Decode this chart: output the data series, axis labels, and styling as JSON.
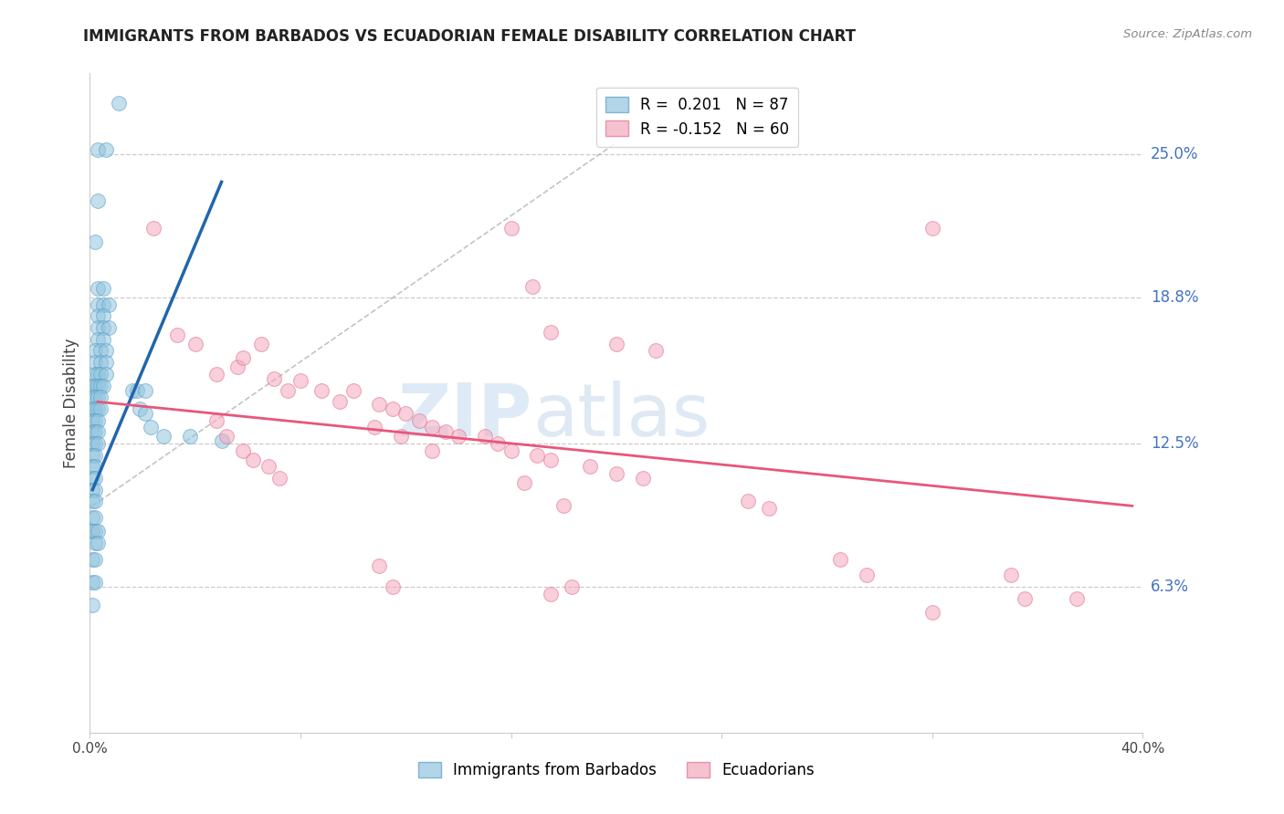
{
  "title": "IMMIGRANTS FROM BARBADOS VS ECUADORIAN FEMALE DISABILITY CORRELATION CHART",
  "source": "Source: ZipAtlas.com",
  "ylabel": "Female Disability",
  "ytick_labels": [
    "25.0%",
    "18.8%",
    "12.5%",
    "6.3%"
  ],
  "ytick_values": [
    0.25,
    0.188,
    0.125,
    0.063
  ],
  "xmin": 0.0,
  "xmax": 0.4,
  "ymin": 0.0,
  "ymax": 0.285,
  "legend_labels_bottom": [
    "Immigrants from Barbados",
    "Ecuadorians"
  ],
  "blue_color": "#92c5de",
  "pink_color": "#f4a8bc",
  "blue_edge_color": "#5a9ec9",
  "pink_edge_color": "#e07090",
  "blue_line_color": "#2166ac",
  "pink_line_color": "#e8567a",
  "dot_size": 130,
  "blue_scatter": [
    [
      0.003,
      0.252
    ],
    [
      0.006,
      0.252
    ],
    [
      0.003,
      0.23
    ],
    [
      0.002,
      0.212
    ],
    [
      0.003,
      0.192
    ],
    [
      0.005,
      0.192
    ],
    [
      0.003,
      0.185
    ],
    [
      0.005,
      0.185
    ],
    [
      0.007,
      0.185
    ],
    [
      0.003,
      0.18
    ],
    [
      0.005,
      0.18
    ],
    [
      0.003,
      0.175
    ],
    [
      0.005,
      0.175
    ],
    [
      0.007,
      0.175
    ],
    [
      0.003,
      0.17
    ],
    [
      0.005,
      0.17
    ],
    [
      0.002,
      0.165
    ],
    [
      0.004,
      0.165
    ],
    [
      0.006,
      0.165
    ],
    [
      0.002,
      0.16
    ],
    [
      0.004,
      0.16
    ],
    [
      0.006,
      0.16
    ],
    [
      0.002,
      0.155
    ],
    [
      0.003,
      0.155
    ],
    [
      0.004,
      0.155
    ],
    [
      0.006,
      0.155
    ],
    [
      0.001,
      0.15
    ],
    [
      0.002,
      0.15
    ],
    [
      0.003,
      0.15
    ],
    [
      0.004,
      0.15
    ],
    [
      0.005,
      0.15
    ],
    [
      0.001,
      0.145
    ],
    [
      0.002,
      0.145
    ],
    [
      0.003,
      0.145
    ],
    [
      0.004,
      0.145
    ],
    [
      0.001,
      0.14
    ],
    [
      0.002,
      0.14
    ],
    [
      0.003,
      0.14
    ],
    [
      0.004,
      0.14
    ],
    [
      0.001,
      0.135
    ],
    [
      0.002,
      0.135
    ],
    [
      0.003,
      0.135
    ],
    [
      0.001,
      0.13
    ],
    [
      0.002,
      0.13
    ],
    [
      0.003,
      0.13
    ],
    [
      0.001,
      0.125
    ],
    [
      0.002,
      0.125
    ],
    [
      0.003,
      0.125
    ],
    [
      0.001,
      0.12
    ],
    [
      0.002,
      0.12
    ],
    [
      0.001,
      0.115
    ],
    [
      0.002,
      0.115
    ],
    [
      0.001,
      0.11
    ],
    [
      0.002,
      0.11
    ],
    [
      0.001,
      0.105
    ],
    [
      0.002,
      0.105
    ],
    [
      0.001,
      0.1
    ],
    [
      0.002,
      0.1
    ],
    [
      0.001,
      0.093
    ],
    [
      0.002,
      0.093
    ],
    [
      0.001,
      0.087
    ],
    [
      0.002,
      0.087
    ],
    [
      0.003,
      0.087
    ],
    [
      0.002,
      0.082
    ],
    [
      0.003,
      0.082
    ],
    [
      0.001,
      0.075
    ],
    [
      0.002,
      0.075
    ],
    [
      0.001,
      0.065
    ],
    [
      0.002,
      0.065
    ],
    [
      0.001,
      0.055
    ],
    [
      0.011,
      0.272
    ],
    [
      0.016,
      0.148
    ],
    [
      0.018,
      0.148
    ],
    [
      0.021,
      0.148
    ],
    [
      0.019,
      0.14
    ],
    [
      0.021,
      0.138
    ],
    [
      0.023,
      0.132
    ],
    [
      0.028,
      0.128
    ],
    [
      0.038,
      0.128
    ],
    [
      0.05,
      0.126
    ]
  ],
  "pink_scatter": [
    [
      0.024,
      0.218
    ],
    [
      0.033,
      0.172
    ],
    [
      0.04,
      0.168
    ],
    [
      0.048,
      0.155
    ],
    [
      0.056,
      0.158
    ],
    [
      0.065,
      0.168
    ],
    [
      0.058,
      0.162
    ],
    [
      0.07,
      0.153
    ],
    [
      0.075,
      0.148
    ],
    [
      0.08,
      0.152
    ],
    [
      0.088,
      0.148
    ],
    [
      0.095,
      0.143
    ],
    [
      0.1,
      0.148
    ],
    [
      0.11,
      0.142
    ],
    [
      0.115,
      0.14
    ],
    [
      0.12,
      0.138
    ],
    [
      0.125,
      0.135
    ],
    [
      0.13,
      0.132
    ],
    [
      0.135,
      0.13
    ],
    [
      0.14,
      0.128
    ],
    [
      0.15,
      0.128
    ],
    [
      0.155,
      0.125
    ],
    [
      0.16,
      0.122
    ],
    [
      0.17,
      0.12
    ],
    [
      0.175,
      0.118
    ],
    [
      0.19,
      0.115
    ],
    [
      0.2,
      0.112
    ],
    [
      0.21,
      0.11
    ],
    [
      0.16,
      0.218
    ],
    [
      0.168,
      0.193
    ],
    [
      0.175,
      0.173
    ],
    [
      0.2,
      0.168
    ],
    [
      0.215,
      0.165
    ],
    [
      0.32,
      0.218
    ],
    [
      0.048,
      0.135
    ],
    [
      0.052,
      0.128
    ],
    [
      0.058,
      0.122
    ],
    [
      0.062,
      0.118
    ],
    [
      0.068,
      0.115
    ],
    [
      0.072,
      0.11
    ],
    [
      0.108,
      0.132
    ],
    [
      0.118,
      0.128
    ],
    [
      0.13,
      0.122
    ],
    [
      0.165,
      0.108
    ],
    [
      0.18,
      0.098
    ],
    [
      0.25,
      0.1
    ],
    [
      0.258,
      0.097
    ],
    [
      0.285,
      0.075
    ],
    [
      0.295,
      0.068
    ],
    [
      0.35,
      0.068
    ],
    [
      0.375,
      0.058
    ],
    [
      0.11,
      0.072
    ],
    [
      0.115,
      0.063
    ],
    [
      0.175,
      0.06
    ],
    [
      0.183,
      0.063
    ],
    [
      0.32,
      0.052
    ],
    [
      0.355,
      0.058
    ]
  ],
  "blue_line": {
    "x0": 0.001,
    "x1": 0.05,
    "y0": 0.105,
    "y1": 0.238
  },
  "pink_line": {
    "x0": 0.003,
    "x1": 0.396,
    "y0": 0.143,
    "y1": 0.098
  },
  "dashed_line": {
    "x0": 0.001,
    "x1": 0.2,
    "y0": 0.098,
    "y1": 0.255
  }
}
